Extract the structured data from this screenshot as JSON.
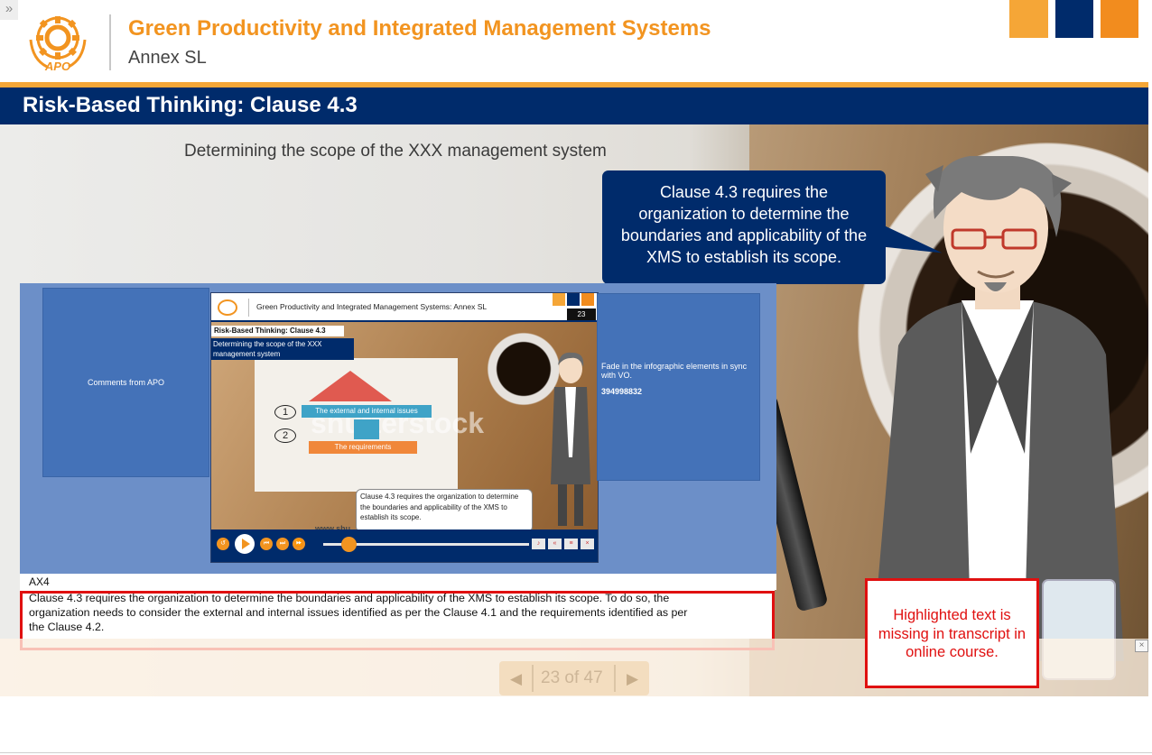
{
  "header": {
    "expand_glyph": "»",
    "course_title": "Green Productivity and Integrated Management Systems",
    "course_subtitle": "Annex SL",
    "logo_text": "APO",
    "brand_colors": [
      "#f5a637",
      "#002b6b",
      "#f28c1e"
    ]
  },
  "slide": {
    "title": "Risk-Based Thinking: Clause 4.3",
    "scope_heading": "Determining the scope of the XXX management system",
    "speech_bubble": "Clause 4.3 requires the organization to determine the boundaries and applicability of the XMS to establish its scope."
  },
  "review": {
    "comments_label": "Comments from APO",
    "note_text": "Fade in the infographic elements in sync with VO.",
    "image_id": "394998832",
    "thumb": {
      "header_title": "Green Productivity  and Integrated Management Systems: Annex SL",
      "page_number": "23",
      "slide_title": "Risk-Based Thinking: Clause 4.3",
      "scope_text": "Determining the scope of the XXX management system",
      "item1_number": "1",
      "item1_label": "The external and internal issues",
      "item2_number": "2",
      "item2_label": "The requirements",
      "watermark": "shutterstock",
      "website": "www.shu",
      "bubble_text": "Clause 4.3 requires the organization to determine the boundaries and applicability of the XMS to establish its scope."
    },
    "section_code": "AX4",
    "transcript_lines": [
      "Clause 4.3 requires  the organization to determine the boundaries and applicability of the XMS to establish its scope.  To do so, the",
      "organization needs to consider the external and internal issues  identified as per the Clause 4.1 and the requirements identified as per",
      "the Clause 4.2."
    ]
  },
  "navigation": {
    "counter": "23 of 47",
    "prev_icon": "◀",
    "next_icon": "▶",
    "close_glyph": "×"
  },
  "annotation": {
    "text": "Highlighted text is missing in transcript in online course."
  }
}
